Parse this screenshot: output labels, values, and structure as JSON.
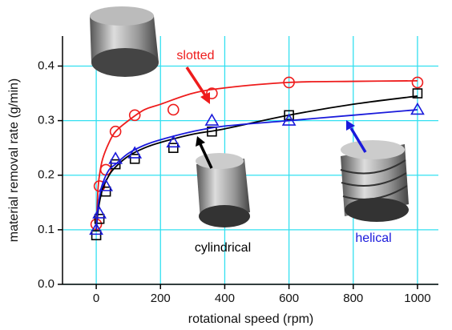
{
  "chart_data": {
    "type": "scatter",
    "xlabel": "rotational speed (rpm)",
    "ylabel": "material removal rate (g/min)",
    "x": [
      0,
      10,
      30,
      60,
      120,
      240,
      360,
      600,
      1000
    ],
    "fit_x": [
      0,
      5,
      10,
      20,
      40,
      60,
      100,
      150,
      200,
      300,
      400,
      600,
      800,
      1000
    ],
    "series": [
      {
        "name": "slotted",
        "color": "#ee1c1c",
        "marker": "circle",
        "values": [
          0.11,
          0.18,
          0.21,
          0.28,
          0.31,
          0.32,
          0.35,
          0.37,
          0.37
        ],
        "fit": [
          0.1,
          0.17,
          0.2,
          0.23,
          0.26,
          0.28,
          0.3,
          0.32,
          0.33,
          0.35,
          0.36,
          0.37,
          0.372,
          0.373
        ]
      },
      {
        "name": "cylindrical",
        "color": "#000000",
        "marker": "square",
        "values": [
          0.09,
          0.12,
          0.17,
          0.22,
          0.23,
          0.25,
          0.28,
          0.31,
          0.35
        ],
        "fit": [
          0.1,
          0.13,
          0.15,
          0.175,
          0.2,
          0.215,
          0.235,
          0.25,
          0.26,
          0.275,
          0.285,
          0.31,
          0.33,
          0.345
        ]
      },
      {
        "name": "helical",
        "color": "#1a1adb",
        "marker": "triangle",
        "values": [
          0.1,
          0.13,
          0.18,
          0.23,
          0.24,
          0.26,
          0.3,
          0.3,
          0.32
        ],
        "fit": [
          0.1,
          0.14,
          0.16,
          0.185,
          0.21,
          0.22,
          0.24,
          0.255,
          0.265,
          0.28,
          0.29,
          0.3,
          0.31,
          0.32
        ]
      }
    ],
    "xlim": [
      -105,
      1065
    ],
    "ylim": [
      0,
      0.455
    ],
    "xticks": [
      0,
      200,
      400,
      600,
      800,
      1000
    ],
    "yticks": [
      {
        "value": 0,
        "label": "0.0"
      },
      0.1,
      0.2,
      0.3,
      0.4
    ],
    "grid": true,
    "grid_color": "#33e0f0"
  }
}
